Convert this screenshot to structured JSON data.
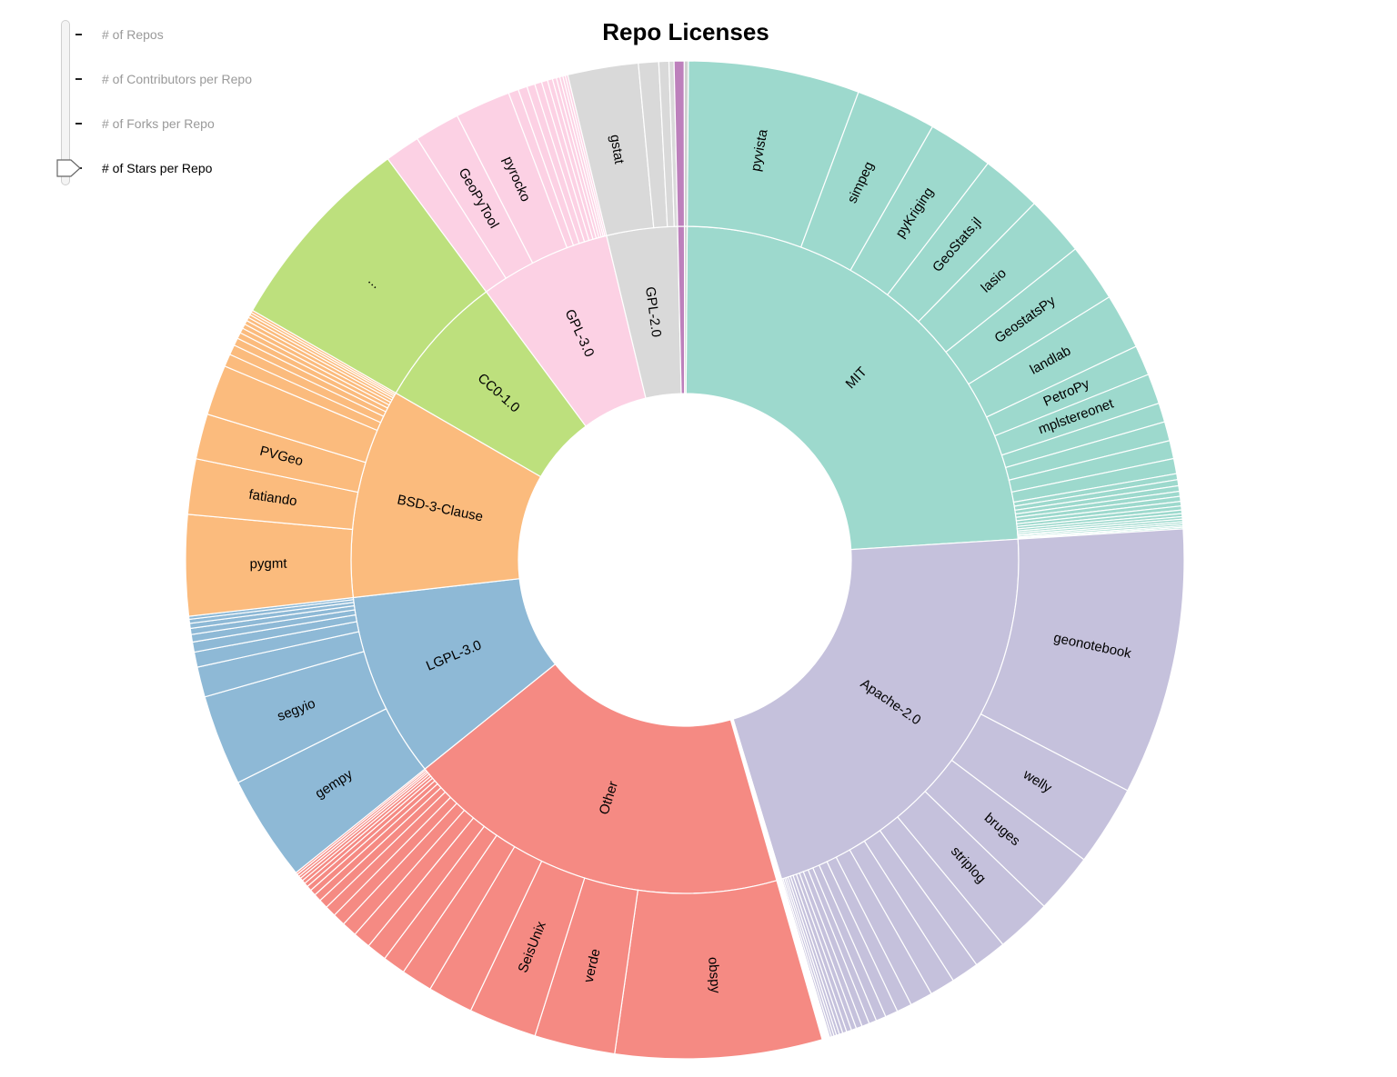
{
  "title": "Repo Licenses",
  "slider": {
    "options": [
      "# of Repos",
      "# of Contributors per Repo",
      "# of Forks per Repo",
      "# of Stars per Repo"
    ],
    "selected_index": 3
  },
  "chart_data": {
    "type": "sunburst",
    "title": "Repo Licenses",
    "metric": "# of Stars per Repo",
    "start_angle_deg": 0.4,
    "licenses": [
      {
        "name": "MIT",
        "color": "#9dd9cd",
        "repos": [
          {
            "name": "pyvista",
            "value": 3.4
          },
          {
            "name": "simpeg",
            "value": 1.6
          },
          {
            "name": "pyKriging",
            "value": 1.3
          },
          {
            "name": "GeoStats.jl",
            "value": 1.2
          },
          {
            "name": "lasio",
            "value": 1.2
          },
          {
            "name": "GeostatsPy",
            "value": 1.15
          },
          {
            "name": "landlab",
            "value": 1.1
          },
          {
            "name": "PetroPy",
            "value": 0.6
          },
          {
            "name": "mplstereonet",
            "value": 0.6
          },
          {
            "name": "",
            "value": 0.38
          },
          {
            "name": "",
            "value": 0.38
          },
          {
            "name": "",
            "value": 0.36
          },
          {
            "name": "",
            "value": 0.3
          },
          {
            "name": "",
            "value": 0.12
          },
          {
            "name": "",
            "value": 0.12
          },
          {
            "name": "",
            "value": 0.11
          },
          {
            "name": "",
            "value": 0.1
          },
          {
            "name": "",
            "value": 0.1
          },
          {
            "name": "",
            "value": 0.09
          },
          {
            "name": "",
            "value": 0.08
          },
          {
            "name": "",
            "value": 0.07
          },
          {
            "name": "",
            "value": 0.06
          },
          {
            "name": "",
            "value": 0.05
          },
          {
            "name": "",
            "value": 0.05
          },
          {
            "name": "",
            "value": 0.04
          },
          {
            "name": "",
            "value": 0.04
          },
          {
            "name": "",
            "value": 0.03
          },
          {
            "name": "",
            "value": 0.03
          }
        ]
      },
      {
        "name": "Apache-2.0",
        "color": "#c5c1dc",
        "repos": [
          {
            "name": "geonotebook",
            "value": 5.3
          },
          {
            "name": "welly",
            "value": 1.6
          },
          {
            "name": "bruges",
            "value": 1.2
          },
          {
            "name": "striplog",
            "value": 1.1
          },
          {
            "name": "",
            "value": 0.65
          },
          {
            "name": "",
            "value": 0.55
          },
          {
            "name": "",
            "value": 0.5
          },
          {
            "name": "",
            "value": 0.45
          },
          {
            "name": "",
            "value": 0.3
          },
          {
            "name": "",
            "value": 0.25
          },
          {
            "name": "",
            "value": 0.2
          },
          {
            "name": "",
            "value": 0.15
          },
          {
            "name": "",
            "value": 0.15
          },
          {
            "name": "",
            "value": 0.12
          },
          {
            "name": "",
            "value": 0.1
          },
          {
            "name": "",
            "value": 0.1
          },
          {
            "name": "",
            "value": 0.08
          },
          {
            "name": "",
            "value": 0.07
          },
          {
            "name": "",
            "value": 0.06
          },
          {
            "name": "",
            "value": 0.05
          },
          {
            "name": "",
            "value": 0.05
          },
          {
            "name": "",
            "value": 0.04
          }
        ]
      },
      {
        "name": "",
        "color": "#ffffff",
        "repos": [
          {
            "name": "",
            "value": 0.15
          }
        ]
      },
      {
        "name": "Other",
        "color": "#f58a83",
        "repos": [
          {
            "name": "obspy",
            "value": 4.1
          },
          {
            "name": "verde",
            "value": 1.6
          },
          {
            "name": "SeisUnix",
            "value": 1.35
          },
          {
            "name": "",
            "value": 0.9
          },
          {
            "name": "",
            "value": 0.62
          },
          {
            "name": "",
            "value": 0.45
          },
          {
            "name": "",
            "value": 0.4
          },
          {
            "name": "",
            "value": 0.35
          },
          {
            "name": "",
            "value": 0.3
          },
          {
            "name": "",
            "value": 0.25
          },
          {
            "name": "",
            "value": 0.22
          },
          {
            "name": "",
            "value": 0.18
          },
          {
            "name": "",
            "value": 0.15
          },
          {
            "name": "",
            "value": 0.12
          },
          {
            "name": "",
            "value": 0.1
          },
          {
            "name": "",
            "value": 0.08
          },
          {
            "name": "",
            "value": 0.07
          },
          {
            "name": "",
            "value": 0.06
          },
          {
            "name": "",
            "value": 0.05
          },
          {
            "name": "",
            "value": 0.05
          },
          {
            "name": "",
            "value": 0.04
          }
        ]
      },
      {
        "name": "LGPL-3.0",
        "color": "#8eb9d6",
        "repos": [
          {
            "name": "gempy",
            "value": 2.1
          },
          {
            "name": "segyio",
            "value": 1.8
          },
          {
            "name": "",
            "value": 0.6
          },
          {
            "name": "",
            "value": 0.3
          },
          {
            "name": "",
            "value": 0.2
          },
          {
            "name": "",
            "value": 0.15
          },
          {
            "name": "",
            "value": 0.12
          },
          {
            "name": "",
            "value": 0.1
          },
          {
            "name": "",
            "value": 0.08
          },
          {
            "name": "",
            "value": 0.06
          }
        ]
      },
      {
        "name": "BSD-3-Clause",
        "color": "#fbbb7d",
        "repos": [
          {
            "name": "pygmt",
            "value": 2.0
          },
          {
            "name": "fatiando",
            "value": 1.1
          },
          {
            "name": "PVGeo",
            "value": 0.9
          },
          {
            "name": "",
            "value": 1.0
          },
          {
            "name": "",
            "value": 0.25
          },
          {
            "name": "",
            "value": 0.2
          },
          {
            "name": "",
            "value": 0.15
          },
          {
            "name": "",
            "value": 0.12
          },
          {
            "name": "",
            "value": 0.1
          },
          {
            "name": "",
            "value": 0.09
          },
          {
            "name": "",
            "value": 0.08
          },
          {
            "name": "",
            "value": 0.07
          },
          {
            "name": "",
            "value": 0.06
          },
          {
            "name": "",
            "value": 0.05
          },
          {
            "name": "",
            "value": 0.05
          }
        ]
      },
      {
        "name": "CC0-1.0",
        "color": "#bde07d",
        "repos": [
          {
            "name": "...",
            "value": 4.0
          }
        ]
      },
      {
        "name": "GPL-3.0",
        "color": "#fcd1e4",
        "repos": [
          {
            "name": "",
            "value": 0.7
          },
          {
            "name": "GeoPyTool",
            "value": 0.9
          },
          {
            "name": "pyrocko",
            "value": 1.1
          },
          {
            "name": "",
            "value": 0.2
          },
          {
            "name": "",
            "value": 0.18
          },
          {
            "name": "",
            "value": 0.16
          },
          {
            "name": "",
            "value": 0.14
          },
          {
            "name": "",
            "value": 0.12
          },
          {
            "name": "",
            "value": 0.1
          },
          {
            "name": "",
            "value": 0.08
          },
          {
            "name": "",
            "value": 0.07
          },
          {
            "name": "",
            "value": 0.06
          },
          {
            "name": "",
            "value": 0.05
          },
          {
            "name": "",
            "value": 0.05
          }
        ]
      },
      {
        "name": "GPL-2.0",
        "color": "#d9d9d9",
        "repos": [
          {
            "name": "gstat",
            "value": 1.4
          },
          {
            "name": "",
            "value": 0.4
          },
          {
            "name": "",
            "value": 0.2
          },
          {
            "name": "",
            "value": 0.1
          }
        ]
      },
      {
        "name": "",
        "color": "#bd80bc",
        "repos": [
          {
            "name": "",
            "value": 0.2
          }
        ]
      },
      {
        "name": "",
        "color": "#cfcfcf",
        "repos": [
          {
            "name": "",
            "value": 0.08
          }
        ]
      }
    ]
  }
}
